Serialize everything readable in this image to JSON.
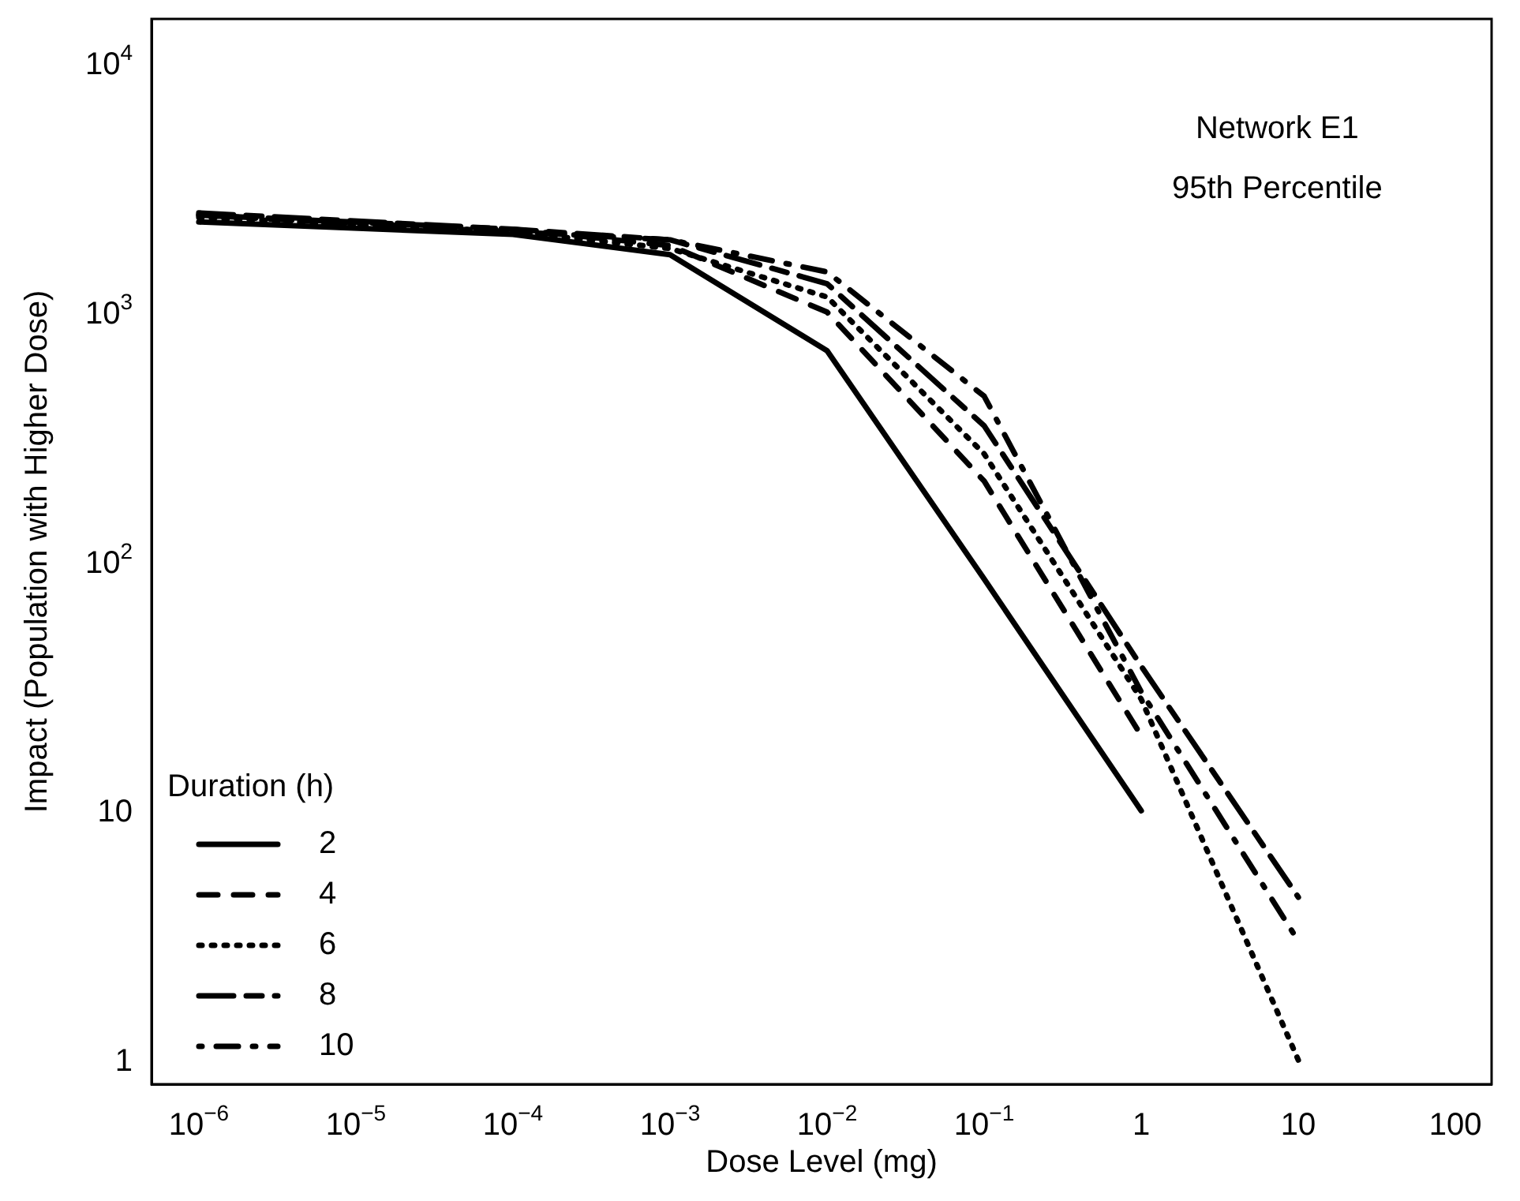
{
  "chart_data": {
    "type": "line",
    "xlabel": "Dose Level (mg)",
    "ylabel": "Impact (Population with Higher Dose)",
    "legend_title": "Duration (h)",
    "legend": "bottom left",
    "log": "xy",
    "grid": false,
    "marker": "none",
    "annotations": [
      "Network E1",
      "95th Percentile"
    ],
    "x": [
      1e-06,
      0.0001,
      0.001,
      0.01,
      0.1,
      1,
      10
    ],
    "xlim": [
      5e-07,
      170
    ],
    "xticks": [
      {
        "value": 1e-06,
        "label": "10$^{−6}$"
      },
      {
        "value": 1e-05,
        "label": "10$^{−5}$"
      },
      {
        "value": 0.0001,
        "label": "10$^{−4}$"
      },
      {
        "value": 0.001,
        "label": "10$^{−3}$"
      },
      {
        "value": 0.01,
        "label": "10$^{−2}$"
      },
      {
        "value": 0.1,
        "label": "10$^{−1}$"
      },
      1,
      10,
      100
    ],
    "ylim": [
      0.8,
      15000
    ],
    "yticks": [
      1,
      10,
      {
        "value": 100,
        "label": "10$^{2}$"
      },
      {
        "value": 1000,
        "label": "10$^{3}$"
      },
      {
        "value": 10000,
        "label": "10$^{4}$"
      }
    ],
    "series": [
      {
        "name": "2",
        "color": "#000000",
        "line_style": "solid",
        "values": [
          2300,
          2050,
          1700,
          700,
          85,
          10,
          null
        ]
      },
      {
        "name": "4",
        "color": "#000000",
        "line_style": "dashed",
        "values": [
          2450,
          2150,
          1850,
          1000,
          210,
          20,
          null
        ]
      },
      {
        "name": "6",
        "color": "#000000",
        "line_style": "dotted",
        "values": [
          2400,
          2100,
          1800,
          1150,
          270,
          28,
          1
        ]
      },
      {
        "name": "8",
        "color": "#000000",
        "line_style": "longdash",
        "values": [
          2500,
          2150,
          1950,
          1300,
          350,
          38,
          4.5
        ]
      },
      {
        "name": "10",
        "color": "#000000",
        "line_style": "dashdot",
        "values": [
          2450,
          2100,
          1950,
          1450,
          460,
          30,
          3
        ]
      }
    ]
  }
}
